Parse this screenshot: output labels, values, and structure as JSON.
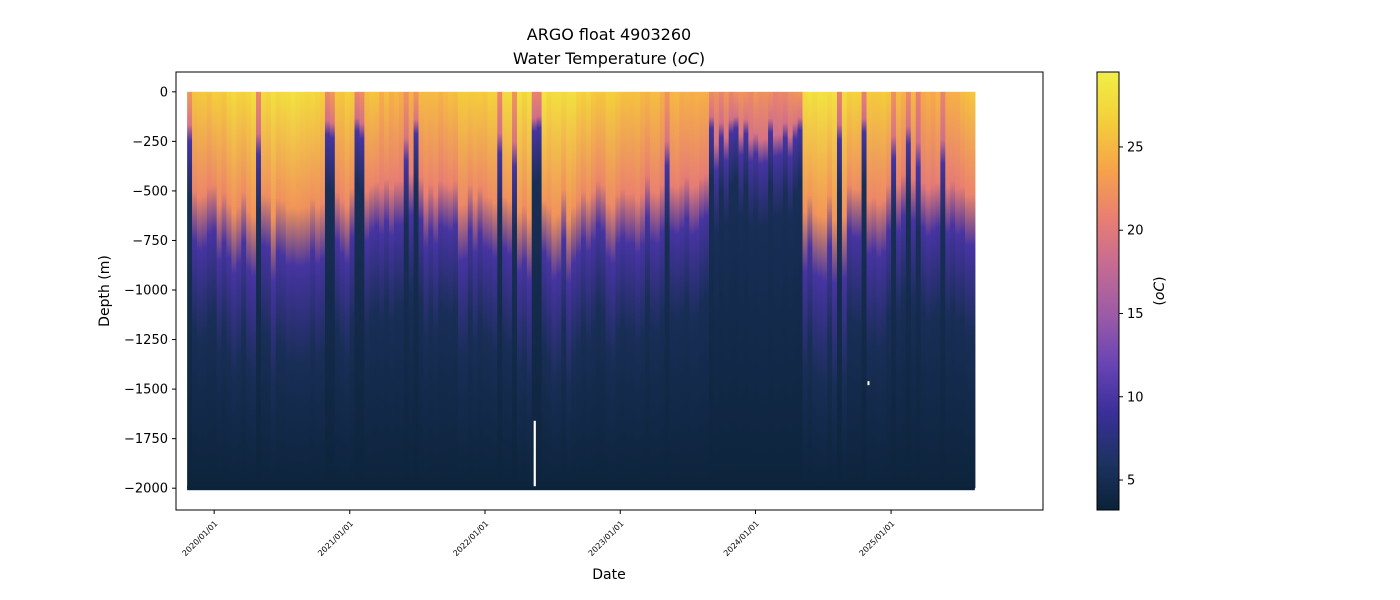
{
  "chart_data": {
    "type": "heatmap",
    "title": "ARGO float 4903260",
    "subtitle": "Water Temperature (",
    "subtitle_unit": "oC",
    "subtitle_close": ")",
    "xlabel": "Date",
    "ylabel": "Depth (m)",
    "colorbar_label_open": "(",
    "colorbar_label_unit": "oC",
    "colorbar_label_close": ")",
    "x_ticks": [
      "2020/01/01",
      "2021/01/01",
      "2022/01/01",
      "2023/01/01",
      "2024/01/01",
      "2025/01/01"
    ],
    "x_range": [
      "2019-09-20",
      "2026-02-15"
    ],
    "data_x_range": [
      "2019-10-20",
      "2025-08-15"
    ],
    "y_ticks": [
      0,
      -250,
      -500,
      -750,
      -1000,
      -1250,
      -1500,
      -1750,
      -2000
    ],
    "ylim": [
      -2110,
      100
    ],
    "colorbar_ticks": [
      5,
      10,
      15,
      20,
      25
    ],
    "colorbar_range": [
      3.2,
      29.5
    ],
    "colormap": [
      "#0b2238",
      "#1d3362",
      "#3a2f9a",
      "#6944b4",
      "#9b5ba7",
      "#c46a94",
      "#e97e72",
      "#f7a34b",
      "#f4cf3a",
      "#f1ef44"
    ],
    "profile_min_depth": -2000,
    "profile_max_depth": 0,
    "gap_date": "2022-05-15",
    "gap_depth_range": [
      -2000,
      -1660
    ],
    "stray_point": {
      "date": "2024-11-01",
      "depth": -1470
    }
  }
}
